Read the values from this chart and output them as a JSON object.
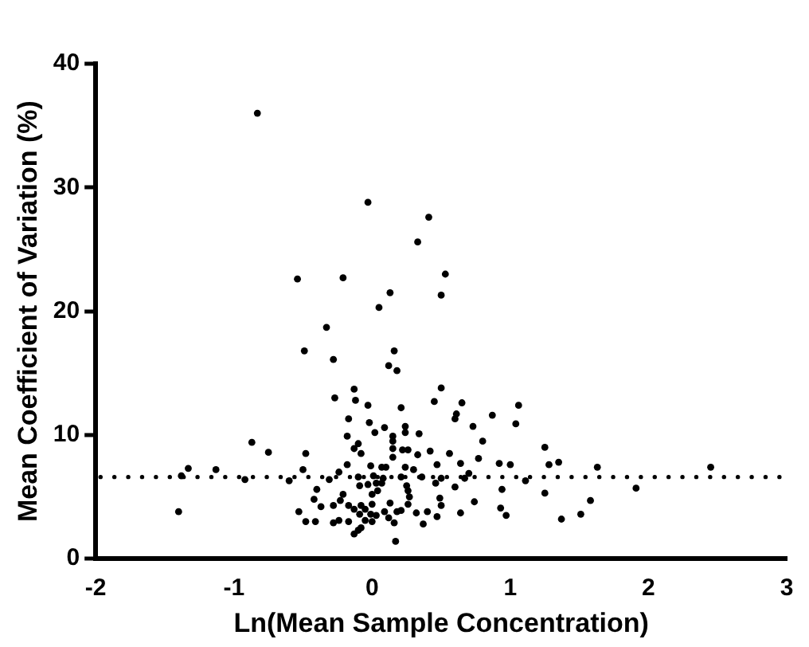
{
  "chart_data": {
    "type": "scatter",
    "xlabel": "Ln(Mean Sample Concentration)",
    "ylabel": "Mean Coefficient of Variation (%)",
    "xlim": [
      -2,
      3
    ],
    "xticks": [
      -2,
      -1,
      0,
      1,
      2,
      3
    ],
    "ylim": [
      0,
      40
    ],
    "yticks": [
      0,
      10,
      20,
      30,
      40
    ],
    "grid": false,
    "legend": false,
    "marker": "circle",
    "ref_lines": [
      {
        "axis": "y",
        "value": 6.6,
        "line_style": "dotted",
        "color": "#000000"
      }
    ],
    "series": [
      {
        "color": "#000000",
        "x": [
          -0.83,
          -0.03,
          0.41,
          0.33,
          -0.54,
          -0.21,
          0.53,
          0.13,
          0.5,
          0.05,
          -0.33,
          -0.49,
          -0.28,
          0.16,
          0.12,
          0.18,
          -0.13,
          0.5,
          -0.27,
          -0.12,
          -0.03,
          0.45,
          0.65,
          0.21,
          1.06,
          0.61,
          0.6,
          -0.17,
          -0.02,
          0.87,
          1.04,
          0.09,
          0.24,
          0.73,
          0.02,
          0.34,
          0.15,
          0.24,
          -0.18,
          0.15,
          0.8,
          -0.87,
          -0.1,
          0.15,
          -0.13,
          0.22,
          0.26,
          -0.08,
          -0.75,
          -0.48,
          1.25,
          0.33,
          0.42,
          0.56,
          0.15,
          0.77,
          0.92,
          1.0,
          1.28,
          1.35,
          1.63,
          2.45,
          -1.33,
          -1.13,
          -0.18,
          0.47,
          0.64,
          -0.01,
          0.07,
          0.1,
          0.24,
          0.3,
          -0.5,
          -0.24,
          0.7,
          -1.38,
          -0.92,
          -0.6,
          -0.31,
          -0.1,
          0.01,
          0.08,
          0.21,
          0.36,
          0.5,
          0.67,
          1.11,
          0.03,
          0.46,
          -0.09,
          -0.03,
          0.07,
          0.25,
          0.6,
          0.94,
          1.91,
          -0.4,
          0.04,
          0.26,
          1.25,
          -0.21,
          0.0,
          0.27,
          0.49,
          -0.42,
          -0.23,
          1.58,
          0.74,
          0.26,
          -0.28,
          -0.17,
          -0.37,
          -0.08,
          0.0,
          0.13,
          0.5,
          0.93,
          -0.13,
          -0.05,
          0.09,
          -1.4,
          -0.53,
          0.18,
          0.32,
          0.4,
          0.64,
          -0.09,
          -0.01,
          0.21,
          0.03,
          0.12,
          0.47,
          0.97,
          1.51,
          -0.24,
          -0.48,
          -0.41,
          -0.28,
          -0.17,
          0.0,
          -0.05,
          0.16,
          0.37,
          1.37,
          -0.08,
          -0.1,
          -0.13,
          0.17
        ],
        "values": [
          36.0,
          28.8,
          27.6,
          25.6,
          22.6,
          22.7,
          23.0,
          21.5,
          21.3,
          20.3,
          18.7,
          16.8,
          16.1,
          16.8,
          15.6,
          15.2,
          13.7,
          13.8,
          13.0,
          12.8,
          12.4,
          12.7,
          12.6,
          12.2,
          12.4,
          11.7,
          11.3,
          11.3,
          11.0,
          11.6,
          10.9,
          10.6,
          10.7,
          10.7,
          10.2,
          10.1,
          9.9,
          10.2,
          9.9,
          9.5,
          9.5,
          9.4,
          9.3,
          8.9,
          8.9,
          8.8,
          8.8,
          8.5,
          8.6,
          8.5,
          9.0,
          8.4,
          8.7,
          8.5,
          8.2,
          8.1,
          7.7,
          7.6,
          7.6,
          7.8,
          7.4,
          7.4,
          7.3,
          7.2,
          7.6,
          7.6,
          7.7,
          7.5,
          7.4,
          7.4,
          7.4,
          7.2,
          7.2,
          7.0,
          6.9,
          6.7,
          6.4,
          6.3,
          6.4,
          6.6,
          6.7,
          6.5,
          6.6,
          6.6,
          6.5,
          6.5,
          6.3,
          6.1,
          6.1,
          5.9,
          6.0,
          6.1,
          5.9,
          5.8,
          5.6,
          5.7,
          5.6,
          5.5,
          5.5,
          5.3,
          5.2,
          5.2,
          5.0,
          4.9,
          4.8,
          4.7,
          4.7,
          4.6,
          4.4,
          4.3,
          4.3,
          4.2,
          4.3,
          4.4,
          4.5,
          4.3,
          4.1,
          4.0,
          4.0,
          3.8,
          3.8,
          3.8,
          3.8,
          3.7,
          3.8,
          3.7,
          3.6,
          3.6,
          3.9,
          3.5,
          3.3,
          3.4,
          3.5,
          3.6,
          3.1,
          3.0,
          3.0,
          2.9,
          3.0,
          3.0,
          3.1,
          2.9,
          2.8,
          3.2,
          2.5,
          2.3,
          2.0,
          1.4
        ]
      }
    ]
  }
}
